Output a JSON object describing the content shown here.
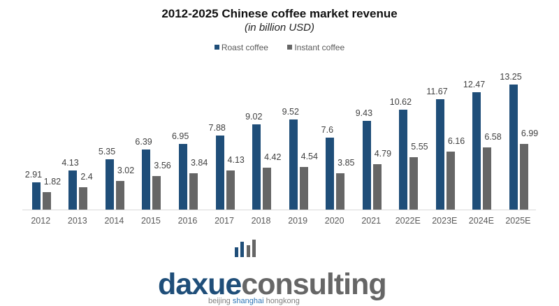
{
  "header": {
    "title": "2012-2025 Chinese coffee market revenue",
    "subtitle": "(in billion USD)"
  },
  "legend": {
    "items": [
      {
        "label": "Roast coffee",
        "color": "#1f4e79"
      },
      {
        "label": "Instant coffee",
        "color": "#666666"
      }
    ]
  },
  "logo": {
    "word_part1": "daxue",
    "word_part2": "consulting",
    "tag_part1": "beijing ",
    "tag_part2": "shanghai",
    "tag_part3": " hongkong",
    "colors": {
      "blue": "#1f4e79",
      "grey": "#666666"
    }
  },
  "chart_data": {
    "type": "bar",
    "title": "2012-2025 Chinese coffee market revenue",
    "subtitle": "(in billion USD)",
    "xlabel": "",
    "ylabel": "",
    "ylim": [
      0,
      14
    ],
    "grid": false,
    "legend_position": "top",
    "categories": [
      "2012",
      "2013",
      "2014",
      "2015",
      "2016",
      "2017",
      "2018",
      "2019",
      "2020",
      "2021",
      "2022E",
      "2023E",
      "2024E",
      "2025E"
    ],
    "series": [
      {
        "name": "Roast coffee",
        "color": "#1f4e79",
        "values": [
          2.91,
          4.13,
          5.35,
          6.39,
          6.95,
          7.88,
          9.02,
          9.52,
          7.6,
          9.43,
          10.62,
          11.67,
          12.47,
          13.25
        ]
      },
      {
        "name": "Instant coffee",
        "color": "#666666",
        "values": [
          1.82,
          2.4,
          3.02,
          3.56,
          3.84,
          4.13,
          4.42,
          4.54,
          3.85,
          4.79,
          5.55,
          6.16,
          6.58,
          6.99
        ]
      }
    ]
  }
}
